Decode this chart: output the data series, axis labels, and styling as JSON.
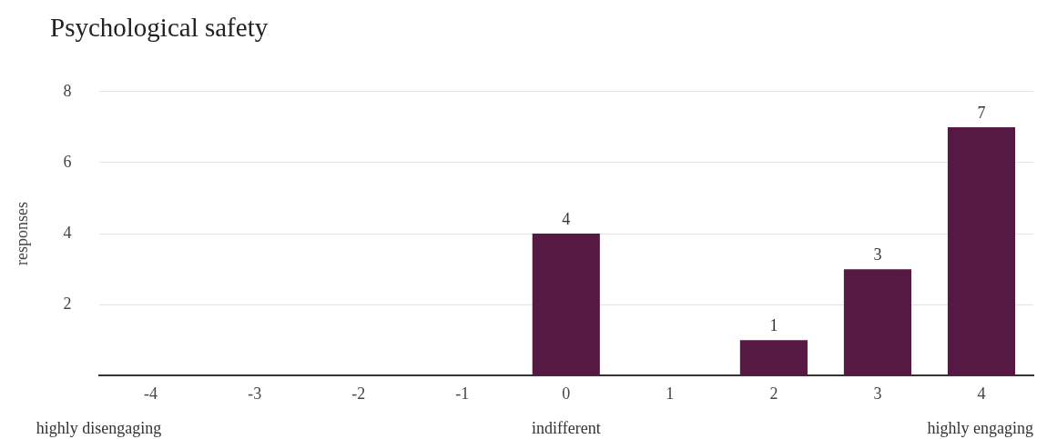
{
  "chart_data": {
    "type": "bar",
    "title": "Psychological safety",
    "ylabel": "responses",
    "categories": [
      "-4",
      "-3",
      "-2",
      "-1",
      "0",
      "1",
      "2",
      "3",
      "4"
    ],
    "values": [
      0,
      0,
      0,
      0,
      4,
      0,
      1,
      3,
      7
    ],
    "value_labels": [
      null,
      null,
      null,
      null,
      "4",
      null,
      "1",
      "3",
      "7"
    ],
    "color": "#561943",
    "ylim": [
      0,
      8
    ],
    "yticks": [
      {
        "value": 0,
        "label": null
      },
      2,
      4,
      6,
      8
    ],
    "grid": "y",
    "legend": false,
    "annotations": [
      "highly disengaging",
      "indifferent",
      "highly engaging"
    ]
  }
}
